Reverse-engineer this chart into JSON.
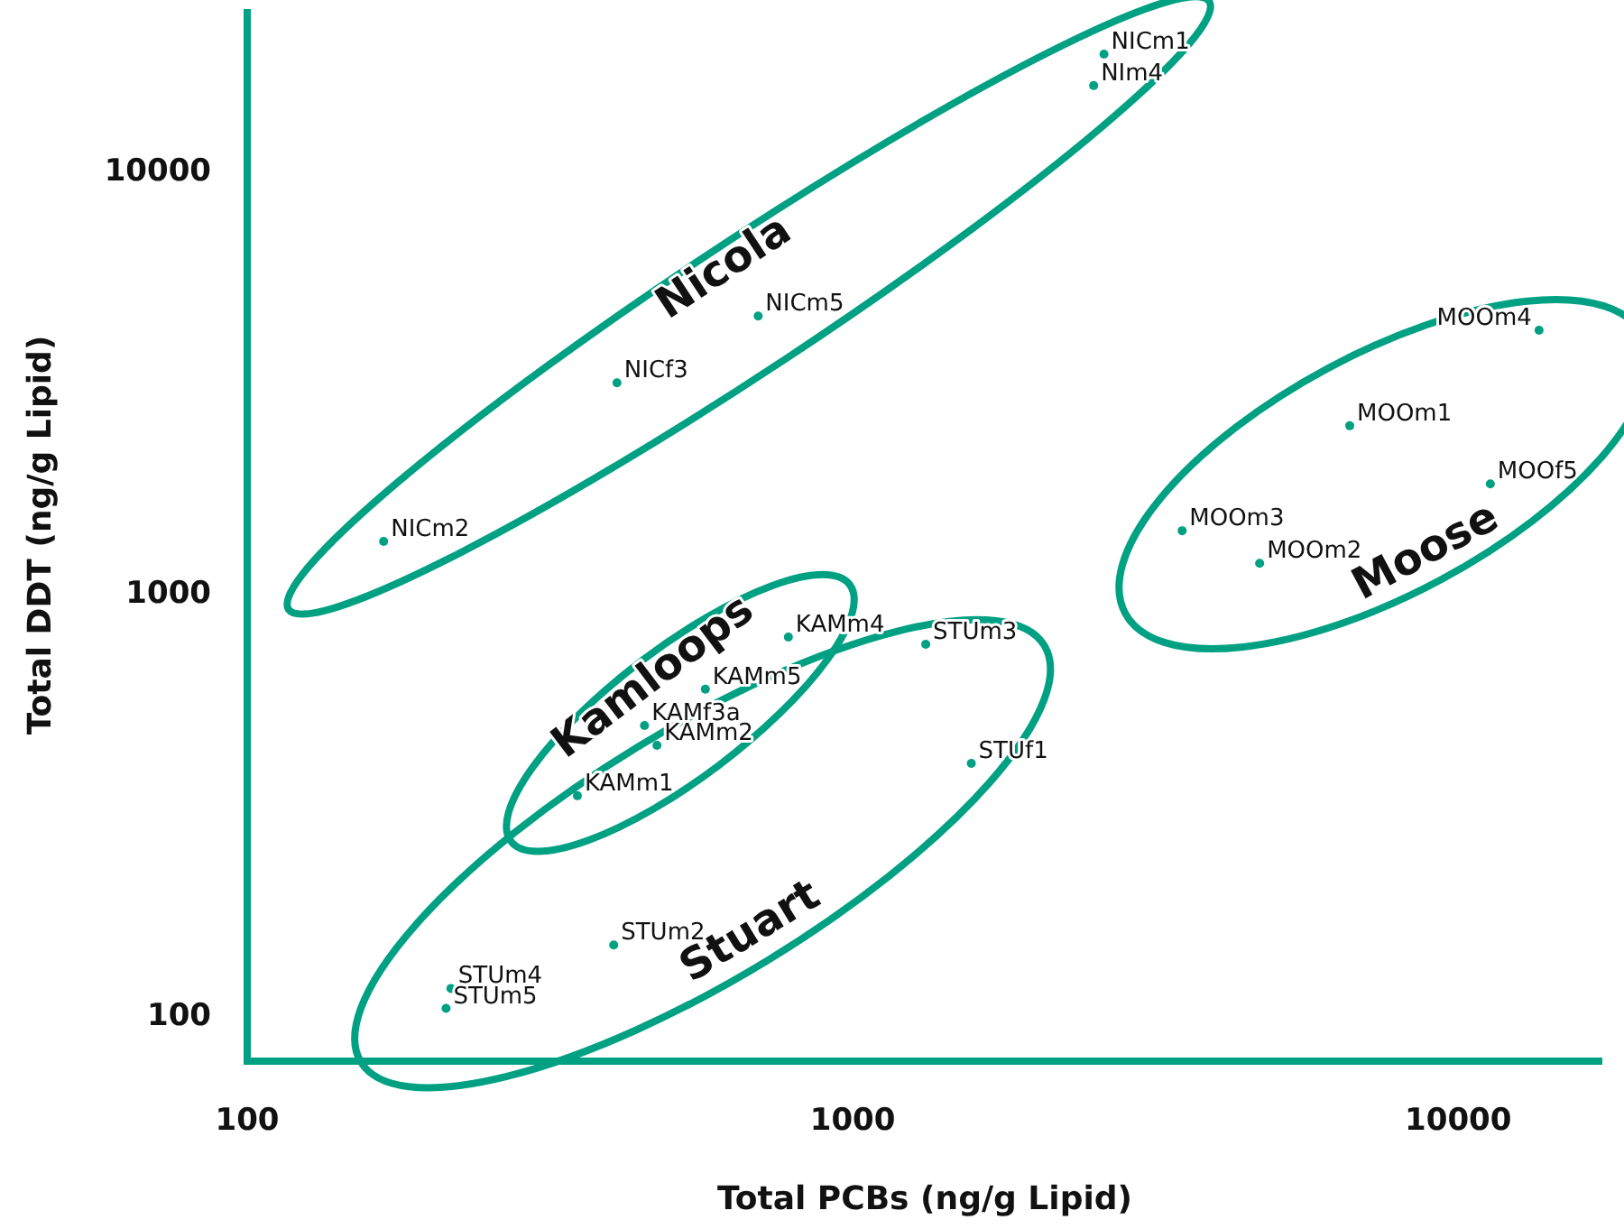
{
  "chart_data": {
    "type": "scatter",
    "xlabel": "Total PCBs (ng/g Lipid)",
    "ylabel": "Total DDT (ng/g Lipid)",
    "log": "xy",
    "xlim": [
      100,
      17300
    ],
    "ylim": [
      78,
      24300
    ],
    "xticks": [
      100,
      1000,
      10000
    ],
    "yticks": [
      100,
      1000,
      10000
    ],
    "grid": false,
    "marker": "circle",
    "series": [
      {
        "name": "Nicola",
        "color": "#00a183",
        "x": [
          2600,
          2500,
          698,
          408,
          168
        ],
        "values": [
          19000,
          16000,
          4550,
          3160,
          1330
        ],
        "value_labels": [
          "NICm1",
          "NIm4",
          "NICm5",
          "NICf3",
          "NICm2"
        ]
      },
      {
        "name": "Kamloops",
        "color": "#00a183",
        "x": [
          783,
          571,
          453,
          475,
          351
        ],
        "values": [
          789,
          594,
          487,
          437,
          332
        ],
        "value_labels": [
          "KAMm4",
          "KAMm5",
          "KAMf3a",
          "KAMm2",
          "KAMm1"
        ]
      },
      {
        "name": "Stuart",
        "color": "#00a183",
        "x": [
          1320,
          1570,
          403,
          217,
          213
        ],
        "values": [
          759,
          396,
          147,
          116,
          104
        ],
        "value_labels": [
          "STUm3",
          "STUf1",
          "STUm2",
          "STUm4",
          "STUm5"
        ]
      },
      {
        "name": "Moose",
        "color": "#00a183",
        "x": [
          13600,
          6620,
          11300,
          3500,
          4700
        ],
        "values": [
          4210,
          2500,
          1820,
          1410,
          1180
        ],
        "value_labels": [
          "MOOm4",
          "MOOm1",
          "MOOf5",
          "MOOm3",
          "MOOm2"
        ]
      }
    ]
  }
}
